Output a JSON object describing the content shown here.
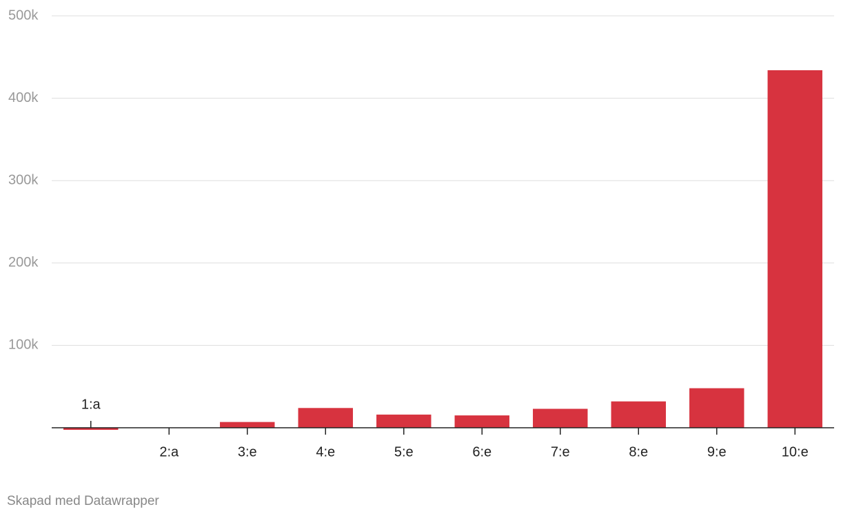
{
  "chart_data": {
    "type": "bar",
    "categories": [
      "1:a",
      "2:a",
      "3:e",
      "4:e",
      "5:e",
      "6:e",
      "7:e",
      "8:e",
      "9:e",
      "10:e"
    ],
    "values": [
      -2500,
      0,
      7000,
      24000,
      16000,
      15000,
      23000,
      32000,
      48000,
      434000
    ],
    "color": "#d7333f",
    "ylim": [
      0,
      500000
    ],
    "yticks": [
      {
        "value": 100000,
        "label": "100k"
      },
      {
        "value": 200000,
        "label": "200k"
      },
      {
        "value": 300000,
        "label": "300k"
      },
      {
        "value": 400000,
        "label": "400k"
      },
      {
        "value": 500000,
        "label": "500k"
      }
    ],
    "grid": true,
    "footer": "Skapad med Datawrapper"
  }
}
